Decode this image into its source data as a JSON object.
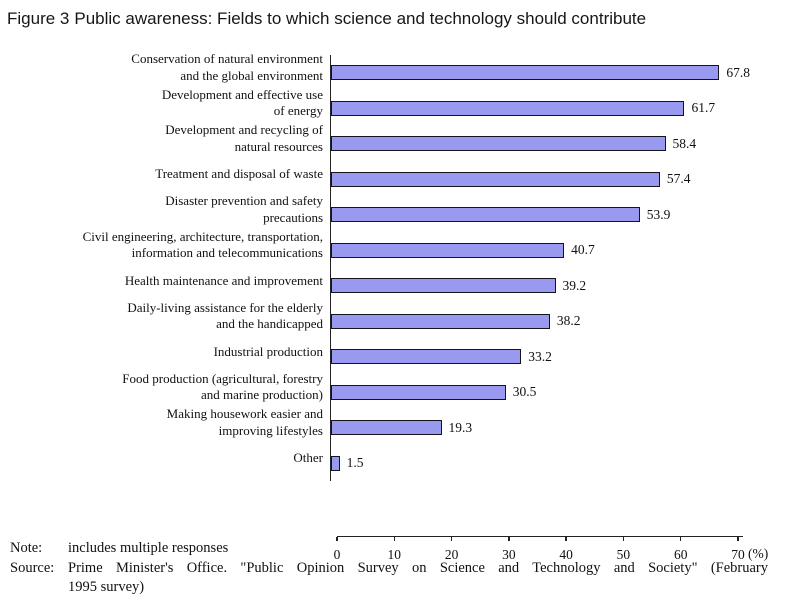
{
  "header": {
    "figure_label": "Figure 3",
    "title": "Public awareness: Fields to which science and technology should contribute"
  },
  "chart_data": {
    "type": "bar",
    "orientation": "horizontal",
    "title": "Public awareness: Fields to which science and technology should contribute",
    "categories": [
      "Conservation of natural environment and the global environment",
      "Development and effective use of energy",
      "Development and recycling of natural resources",
      "Treatment and disposal of waste",
      "Disaster prevention and safety precautions",
      "Civil engineering, architecture, transportation, information and telecommunications",
      "Health maintenance and improvement",
      "Daily-living assistance for the elderly and the handicapped",
      "Industrial production",
      "Food production (agricultural, forestry and marine production)",
      "Making housework easier and improving lifestyles",
      "Other"
    ],
    "category_label_lines": [
      [
        "Conservation of natural environment",
        "and the global environment"
      ],
      [
        "Development and effective use",
        "of energy"
      ],
      [
        "Development and recycling of",
        "natural resources"
      ],
      [
        "Treatment and disposal of waste"
      ],
      [
        "Disaster prevention and safety",
        "precautions"
      ],
      [
        "Civil engineering, architecture, transportation,",
        "information and telecommunications"
      ],
      [
        "Health maintenance and improvement"
      ],
      [
        "Daily-living assistance for the elderly",
        "and the handicapped"
      ],
      [
        "Industrial production"
      ],
      [
        "Food production (agricultural, forestry",
        "and marine production)"
      ],
      [
        "Making housework easier and",
        "improving lifestyles"
      ],
      [
        "Other"
      ]
    ],
    "values": [
      67.8,
      61.7,
      58.4,
      57.4,
      53.9,
      40.7,
      39.2,
      38.2,
      33.2,
      30.5,
      19.3,
      1.5
    ],
    "value_labels": [
      "67.8",
      "61.7",
      "58.4",
      "57.4",
      "53.9",
      "40.7",
      "39.2",
      "38.2",
      "33.2",
      "30.5",
      "19.3",
      "1.5"
    ],
    "xlim": [
      0,
      70
    ],
    "x_ticks": [
      0,
      10,
      20,
      30,
      40,
      50,
      60,
      70
    ],
    "unit_label": "(%)",
    "grid": false,
    "legend": false,
    "bar_fill_color": "#9999F0",
    "bar_border_color": "#14141C",
    "axis_color": "#222222"
  },
  "footer": {
    "note_label": "Note:",
    "note_text": "includes multiple responses",
    "source_label": "Source:",
    "source_line1": "Prime Minister's Office. \"Public Opinion Survey on Science and Technology and Society\" (February",
    "source_line2": "1995 survey)"
  }
}
